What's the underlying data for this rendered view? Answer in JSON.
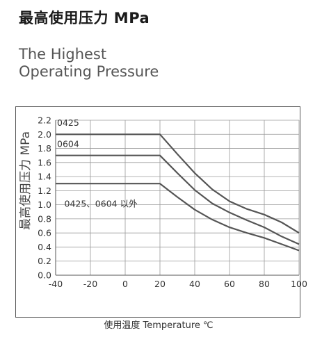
{
  "heading": {
    "title_cn": "最高使用压力 MPa",
    "title_en_line1": "The Highest",
    "title_en_line2": "Operating Pressure"
  },
  "chart_data": {
    "type": "line",
    "xlabel": "使用温度 Temperature ℃",
    "ylabel": "最高使用压力 MPa",
    "xlim": [
      -40,
      100
    ],
    "ylim": [
      0,
      2.2
    ],
    "x_ticks": [
      "-40",
      "-20",
      "0",
      "20",
      "40",
      "60",
      "80",
      "100"
    ],
    "y_ticks": [
      "0.0",
      "0.2",
      "0.4",
      "0.6",
      "0.8",
      "1.0",
      "1.2",
      "1.4",
      "1.6",
      "1.8",
      "2.0",
      "2.2"
    ],
    "grid": true,
    "line_color": "#555555",
    "series": [
      {
        "name": "0425",
        "x": [
          -40,
          20,
          30,
          40,
          50,
          60,
          70,
          80,
          90,
          100
        ],
        "values": [
          2.0,
          2.0,
          1.72,
          1.45,
          1.22,
          1.05,
          0.94,
          0.86,
          0.75,
          0.6
        ]
      },
      {
        "name": "0604",
        "x": [
          -40,
          20,
          30,
          40,
          50,
          60,
          70,
          80,
          90,
          100
        ],
        "values": [
          1.7,
          1.7,
          1.45,
          1.21,
          1.02,
          0.89,
          0.78,
          0.68,
          0.55,
          0.44
        ]
      },
      {
        "name": "0425、0604 以外",
        "x": [
          -40,
          20,
          30,
          40,
          50,
          60,
          70,
          80,
          90,
          100
        ],
        "values": [
          1.3,
          1.3,
          1.11,
          0.93,
          0.79,
          0.68,
          0.6,
          0.53,
          0.44,
          0.35
        ]
      }
    ]
  }
}
